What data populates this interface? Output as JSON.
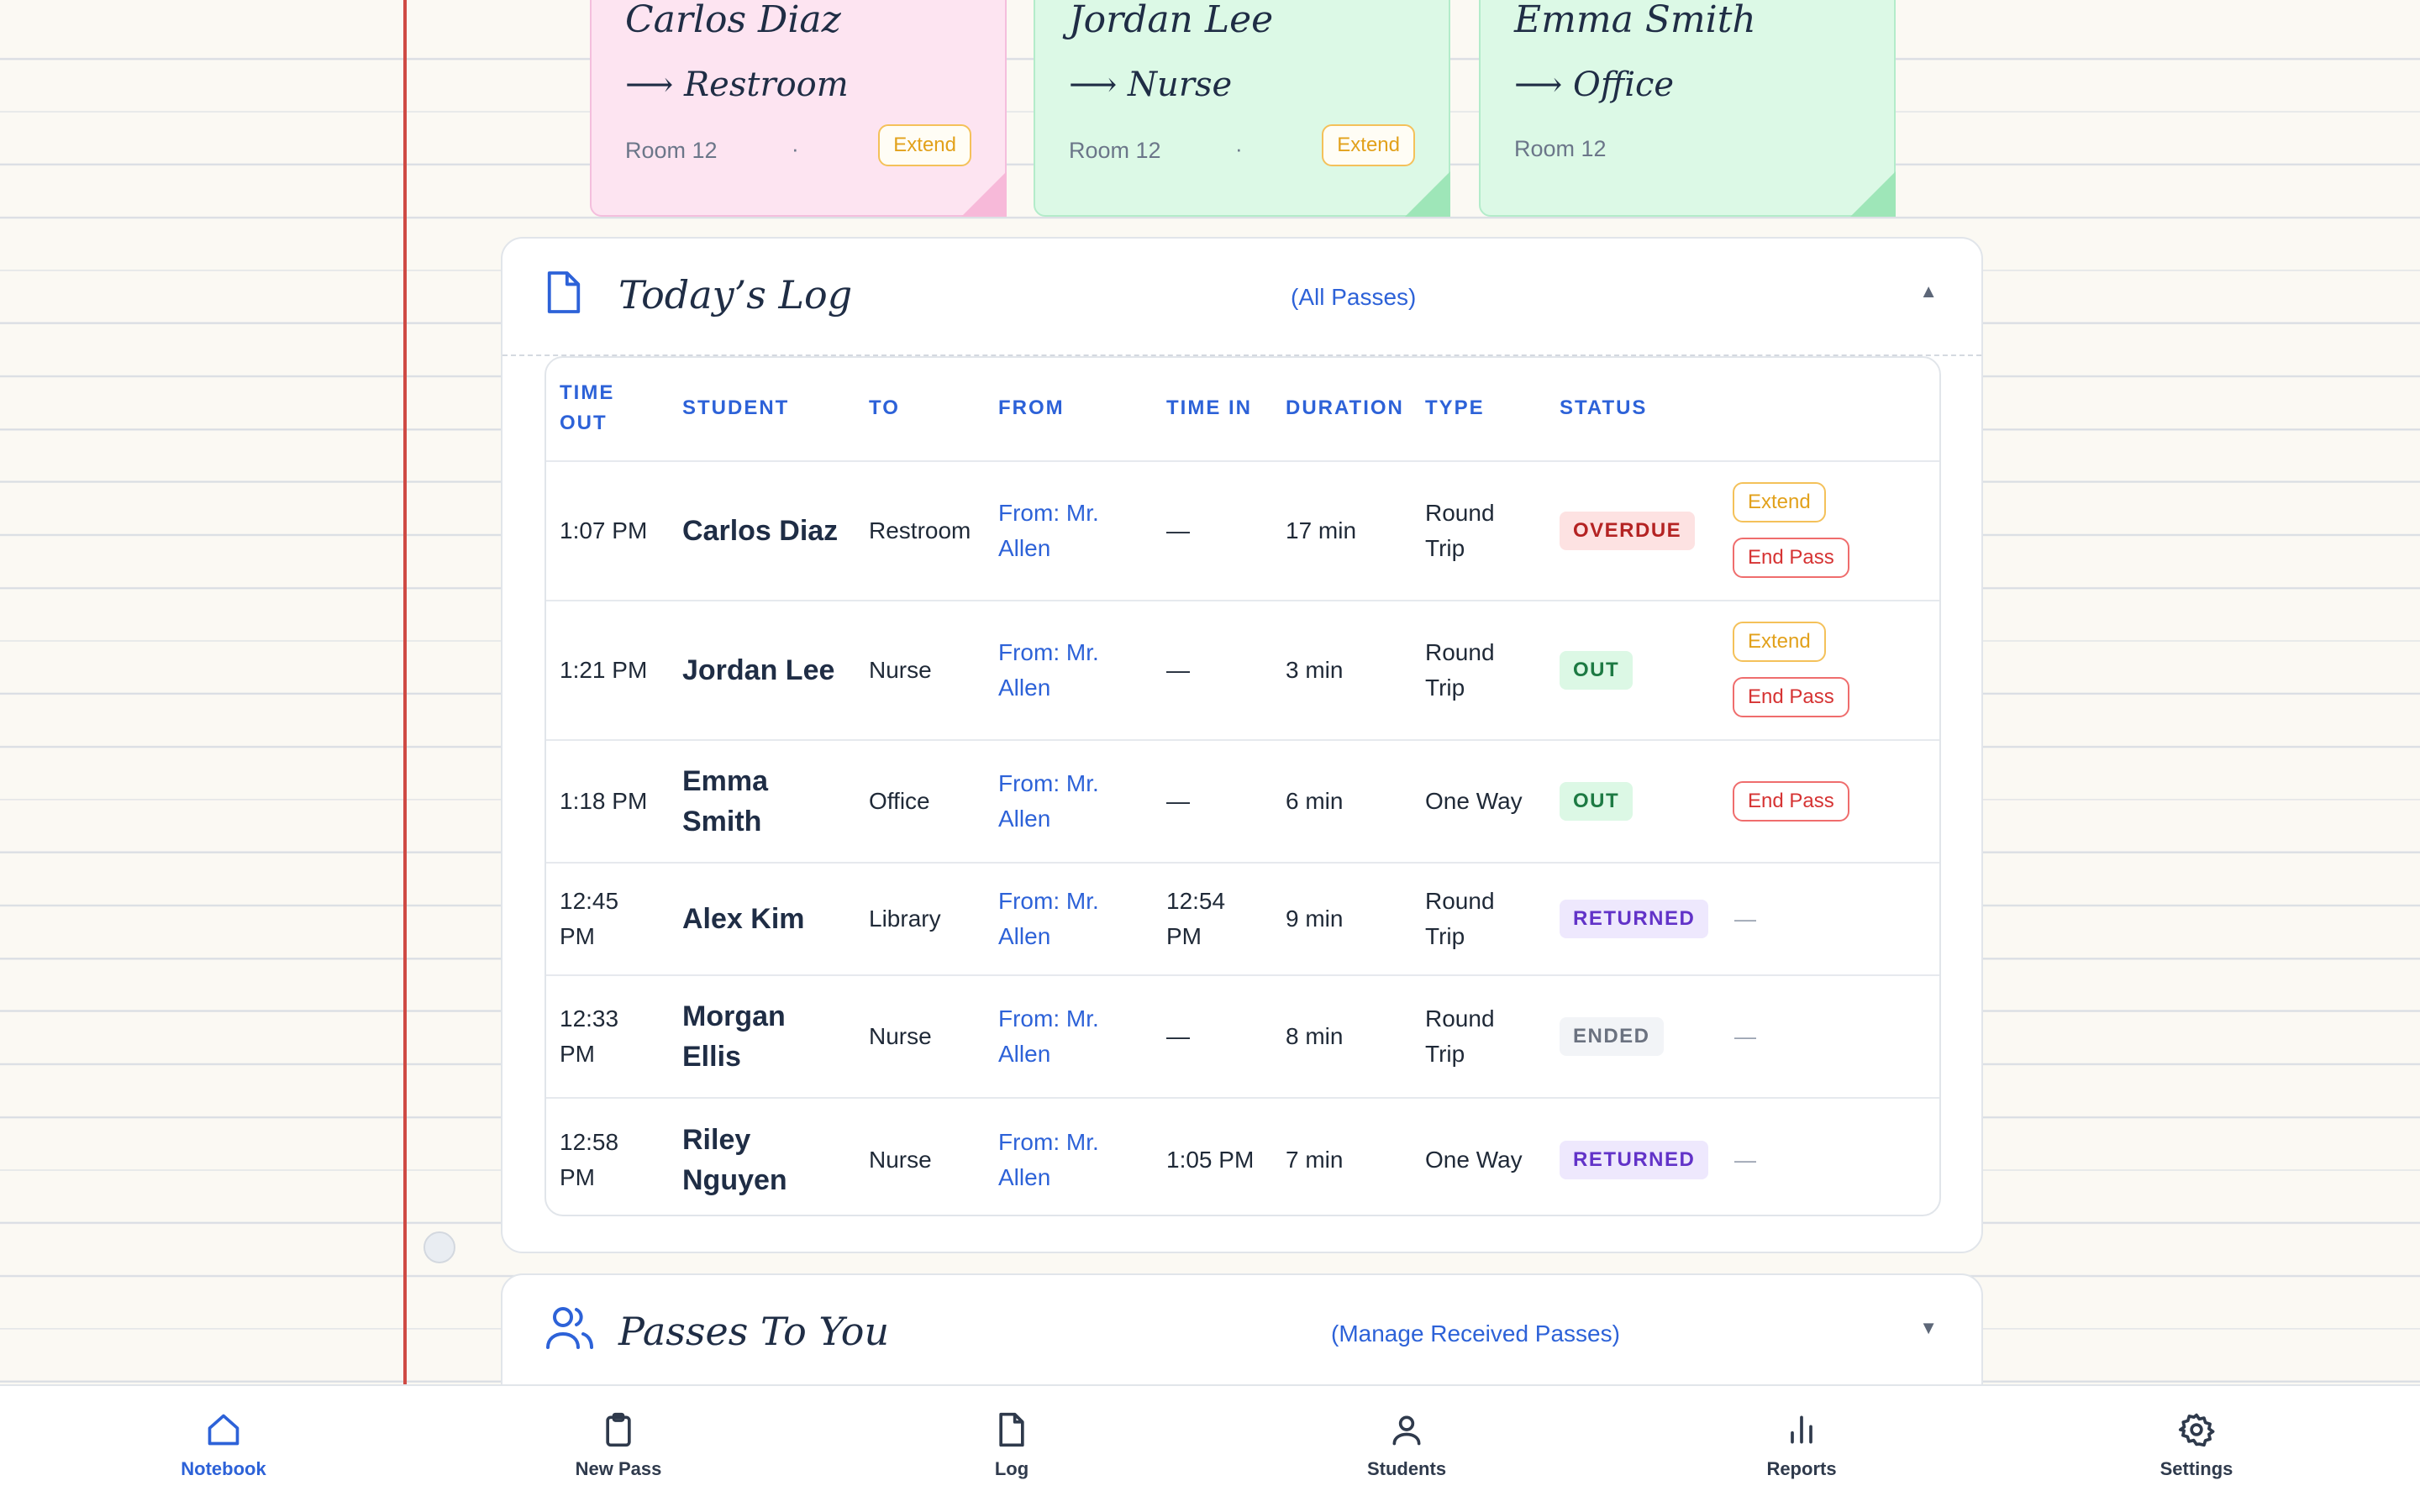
{
  "notes": [
    {
      "name": "Carlos Diaz",
      "dest": "⟶ Restroom",
      "room": "Room 12",
      "sep": "·",
      "action": "Extend"
    },
    {
      "name": "Jordan Lee",
      "dest": "⟶ Nurse",
      "room": "Room 12",
      "sep": "·",
      "action": "Extend"
    },
    {
      "name": "Emma Smith",
      "dest": "⟶ Office",
      "room": "Room 12"
    }
  ],
  "log": {
    "title": "Today’s Log",
    "subtitle": "(All Passes)",
    "chevron": "▲",
    "columns": {
      "time_out_1": "TIME",
      "time_out_2": "OUT",
      "student": "STUDENT",
      "to": "TO",
      "from": "FROM",
      "time_in": "TIME IN",
      "duration": "DURATION",
      "type": "TYPE",
      "status": "STATUS"
    },
    "rows": [
      {
        "time_out": "1:07 PM",
        "student": "Carlos Diaz",
        "to": "Restroom",
        "from": "From: Mr. Allen",
        "time_in": "—",
        "duration": "17 min",
        "type": "Round Trip",
        "status": "OVERDUE",
        "extend": "Extend",
        "end": "End Pass"
      },
      {
        "time_out": "1:21 PM",
        "student": "Jordan Lee",
        "to": "Nurse",
        "from": "From: Mr. Allen",
        "time_in": "—",
        "duration": "3 min",
        "type": "Round Trip",
        "status": "OUT",
        "extend": "Extend",
        "end": "End Pass"
      },
      {
        "time_out": "1:18 PM",
        "student": "Emma Smith",
        "to": "Office",
        "from": "From: Mr. Allen",
        "time_in": "—",
        "duration": "6 min",
        "type": "One Way",
        "status": "OUT",
        "end": "End Pass"
      },
      {
        "time_out": "12:45 PM",
        "student": "Alex Kim",
        "to": "Library",
        "from": "From: Mr. Allen",
        "time_in": "12:54 PM",
        "duration": "9 min",
        "type": "Round Trip",
        "status": "RETURNED",
        "action_dash": "—"
      },
      {
        "time_out": "12:33 PM",
        "student": "Morgan Ellis",
        "to": "Nurse",
        "from": "From: Mr. Allen",
        "time_in": "—",
        "duration": "8 min",
        "type": "Round Trip",
        "status": "ENDED",
        "action_dash": "—"
      },
      {
        "time_out": "12:58 PM",
        "student": "Riley Nguyen",
        "to": "Nurse",
        "from": "From: Mr. Allen",
        "time_in": "1:05 PM",
        "duration": "7 min",
        "type": "One Way",
        "status": "RETURNED",
        "action_dash": "—"
      }
    ]
  },
  "passes_to_you": {
    "title": "Passes To You",
    "subtitle": "(Manage Received Passes)",
    "chevron": "▼"
  },
  "nav": [
    {
      "label": "Notebook",
      "icon": "home-icon",
      "active": true
    },
    {
      "label": "New Pass",
      "icon": "clipboard-icon"
    },
    {
      "label": "Log",
      "icon": "document-icon"
    },
    {
      "label": "Students",
      "icon": "user-icon"
    },
    {
      "label": "Reports",
      "icon": "bar-chart-icon"
    },
    {
      "label": "Settings",
      "icon": "gear-icon"
    }
  ],
  "colors": {
    "accent": "#2d62d8",
    "margin_line": "#cf4a44",
    "note_pink": "#fde4f1",
    "note_green": "#dcf9e6",
    "overdue": "#b42323",
    "out": "#1d7a43",
    "returned": "#6233c8",
    "ended": "#6b7280",
    "extend": "#e2a11b",
    "end_pass": "#d63333"
  }
}
